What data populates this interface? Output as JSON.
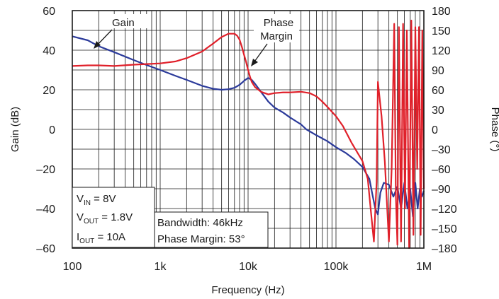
{
  "chart_data": {
    "type": "line",
    "xlabel": "Frequency (Hz)",
    "ylabel": "Gain (dB)",
    "y2label": "Phase (°)",
    "x_scale": "log",
    "xlim": [
      100,
      1000000
    ],
    "ylim": [
      -60,
      60
    ],
    "y2lim": [
      -180,
      180
    ],
    "grid": true,
    "x_ticks": [
      "100",
      "1k",
      "10k",
      "100k",
      "1M"
    ],
    "y_ticks": [
      "60",
      "40",
      "20",
      "0",
      "–20",
      "–40",
      "–60"
    ],
    "y2_ticks": [
      "180",
      "150",
      "120",
      "90",
      "60",
      "30",
      "0",
      "–30",
      "–60",
      "–90",
      "–120",
      "–150",
      "–180"
    ],
    "annotations": {
      "gain": "Gain",
      "phase_margin_line1": "Phase",
      "phase_margin_line2": "Margin"
    },
    "conditions": {
      "vin_label": "V",
      "vin_sub": "IN",
      "vin_value": " = 8V",
      "vout_label": "V",
      "vout_sub": "OUT",
      "vout_value": " = 1.8V",
      "iout_label": "I",
      "iout_sub": "OUT",
      "iout_value": " = 10A"
    },
    "results": {
      "bandwidth": "Bandwidth: 46kHz",
      "phase_margin": "Phase Margin: 53°"
    },
    "series": [
      {
        "name": "Gain",
        "axis": "left",
        "color": "#2b3a9a",
        "x": [
          100,
          150,
          200,
          300,
          500,
          700,
          1000,
          1500,
          2000,
          3000,
          4000,
          5000,
          6000,
          7000,
          8000,
          9000,
          10000,
          11000,
          12000,
          14000,
          17000,
          20000,
          25000,
          30000,
          40000,
          46000,
          60000,
          80000,
          100000,
          130000,
          160000,
          200000,
          240000,
          260000,
          280000,
          300000,
          320000,
          350000,
          400000,
          450000,
          500000,
          550000,
          600000,
          650000,
          700000,
          750000,
          800000,
          850000,
          900000,
          950000,
          1000000
        ],
        "values": [
          47,
          45,
          42,
          39,
          35,
          32.5,
          30,
          27,
          25,
          22,
          20.5,
          20,
          20.3,
          21,
          22.5,
          24.5,
          26,
          25,
          23,
          19,
          14,
          11,
          8.5,
          6,
          2.5,
          0,
          -3,
          -6,
          -9,
          -12,
          -15,
          -19,
          -25,
          -33,
          -40,
          -43,
          -32,
          -27,
          -28,
          -34,
          -29,
          -40,
          -27,
          -40,
          -30,
          -44,
          -27,
          -40,
          -30,
          -34,
          -31
        ]
      },
      {
        "name": "Phase",
        "axis": "right",
        "color": "#e0202a",
        "x": [
          100,
          150,
          200,
          300,
          500,
          700,
          1000,
          1500,
          2000,
          3000,
          4000,
          5000,
          6000,
          7000,
          7500,
          8000,
          8500,
          9000,
          9500,
          10000,
          10500,
          11000,
          12000,
          14000,
          17000,
          20000,
          25000,
          30000,
          40000,
          50000,
          60000,
          70000,
          80000,
          100000,
          120000,
          150000,
          200000,
          230000,
          250000,
          270000,
          290000,
          300000,
          330000,
          360000,
          400000,
          430000,
          460000,
          480000,
          500000,
          520000,
          550000,
          580000,
          610000,
          640000,
          680000,
          720000,
          760000,
          800000,
          840000,
          880000,
          920000,
          960000,
          1000000
        ],
        "values": [
          96,
          97,
          97,
          96,
          98,
          99,
          100,
          103,
          108,
          118,
          130,
          140,
          145,
          145,
          142,
          136,
          125,
          113,
          102,
          90,
          80,
          72,
          64,
          57,
          53,
          55,
          56,
          56,
          57,
          55,
          50,
          42,
          34,
          20,
          5,
          -20,
          -48,
          -75,
          -125,
          -170,
          -80,
          72,
          20,
          -50,
          -170,
          -60,
          160,
          -100,
          -175,
          155,
          -170,
          160,
          -120,
          150,
          -180,
          165,
          -160,
          155,
          -60,
          155,
          -160,
          150,
          -90
        ]
      }
    ]
  }
}
